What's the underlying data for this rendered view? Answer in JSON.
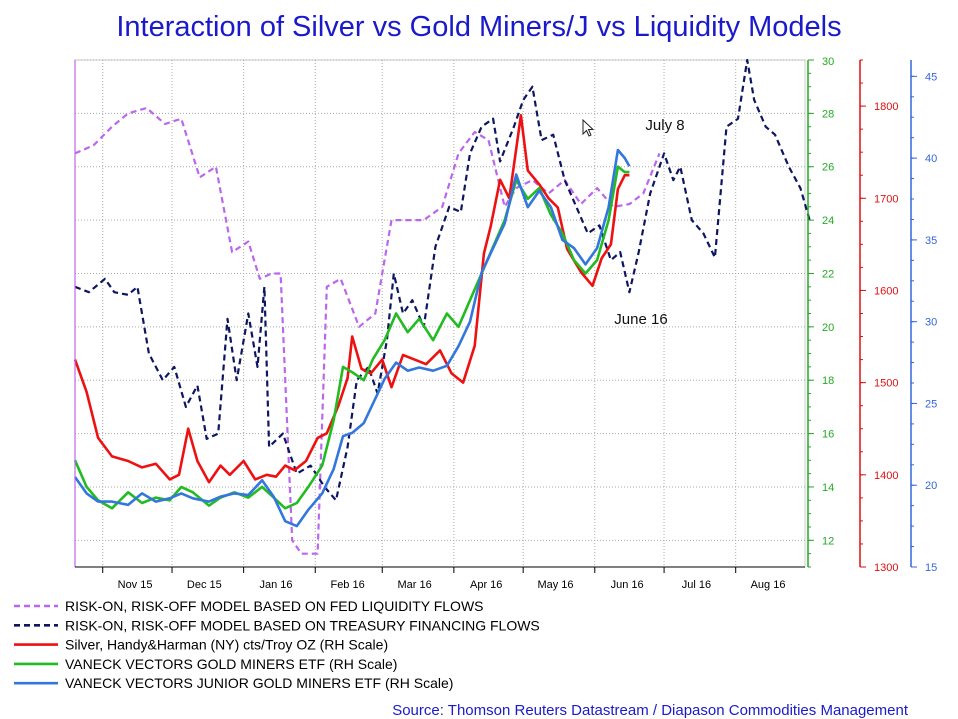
{
  "chart_data": {
    "type": "line",
    "title": "Interaction of Silver vs Gold Miners/J vs Liquidity Models",
    "source": "Source: Thomson Reuters Datastream / Diapason Commodities Management",
    "x_labels": [
      "Nov 15",
      "Dec 15",
      "Jan 16",
      "Feb 16",
      "Mar 16",
      "Apr 16",
      "May 16",
      "Jun 16",
      "Jul 16",
      "Aug 16"
    ],
    "x_range": [
      "2015-10-20",
      "2016-08-31"
    ],
    "annotations": [
      {
        "text": "July 8",
        "date": "2016-07-08"
      },
      {
        "text": "June 16",
        "date": "2016-06-16"
      }
    ],
    "axes": [
      {
        "name": "gdx-axis",
        "color": "#22aa22",
        "min": 11,
        "max": 30,
        "ticks": [
          12,
          14,
          16,
          18,
          20,
          22,
          24,
          26,
          28,
          30
        ]
      },
      {
        "name": "silver-axis",
        "color": "#dd1111",
        "min": 1300,
        "max": 1850,
        "ticks": [
          1300,
          1400,
          1500,
          1600,
          1700,
          1800
        ]
      },
      {
        "name": "gdxj-axis",
        "color": "#3366dd",
        "min": 15,
        "max": 46,
        "ticks": [
          15,
          20,
          25,
          30,
          35,
          40,
          45
        ]
      }
    ],
    "series": [
      {
        "name": "RISK-ON, RISK-OFF MODEL BASED ON FED LIQUIDITY FLOWS",
        "color": "#bb66ee",
        "dash": "6,4",
        "axis": "gdx-axis",
        "points": [
          [
            "2015-10-20",
            26.5
          ],
          [
            "2015-10-28",
            26.8
          ],
          [
            "2015-11-05",
            27.5
          ],
          [
            "2015-11-12",
            28.0
          ],
          [
            "2015-11-20",
            28.2
          ],
          [
            "2015-11-28",
            27.6
          ],
          [
            "2015-12-05",
            27.8
          ],
          [
            "2015-12-13",
            25.6
          ],
          [
            "2015-12-20",
            26.0
          ],
          [
            "2015-12-27",
            22.8
          ],
          [
            "2016-01-03",
            23.2
          ],
          [
            "2016-01-08",
            21.8
          ],
          [
            "2016-01-13",
            22.0
          ],
          [
            "2016-01-17",
            22.0
          ],
          [
            "2016-01-22",
            12.0
          ],
          [
            "2016-01-26",
            11.5
          ],
          [
            "2016-02-02",
            11.5
          ],
          [
            "2016-02-06",
            21.5
          ],
          [
            "2016-02-12",
            21.8
          ],
          [
            "2016-02-20",
            20.0
          ],
          [
            "2016-02-27",
            20.5
          ],
          [
            "2016-03-05",
            24.0
          ],
          [
            "2016-03-12",
            24.0
          ],
          [
            "2016-03-19",
            24.0
          ],
          [
            "2016-03-27",
            24.5
          ],
          [
            "2016-04-03",
            26.5
          ],
          [
            "2016-04-10",
            27.3
          ],
          [
            "2016-04-16",
            27.0
          ],
          [
            "2016-04-23",
            24.5
          ],
          [
            "2016-04-28",
            25.2
          ],
          [
            "2016-05-05",
            25.5
          ],
          [
            "2016-05-12",
            25.0
          ],
          [
            "2016-05-19",
            25.5
          ],
          [
            "2016-05-26",
            24.6
          ],
          [
            "2016-06-02",
            25.2
          ],
          [
            "2016-06-09",
            24.5
          ],
          [
            "2016-06-16",
            24.6
          ],
          [
            "2016-06-22",
            25.0
          ],
          [
            "2016-06-29",
            26.5
          ]
        ]
      },
      {
        "name": "RISK-ON, RISK-OFF MODEL BASED ON TREASURY FINANCING FLOWS",
        "color": "#0d1660",
        "dash": "6,4",
        "axis": "gdx-axis",
        "points": [
          [
            "2015-10-20",
            21.5
          ],
          [
            "2015-10-26",
            21.3
          ],
          [
            "2015-11-02",
            21.8
          ],
          [
            "2015-11-06",
            21.3
          ],
          [
            "2015-11-12",
            21.2
          ],
          [
            "2015-11-16",
            21.5
          ],
          [
            "2015-11-21",
            19.0
          ],
          [
            "2015-11-27",
            18.0
          ],
          [
            "2015-12-02",
            18.5
          ],
          [
            "2015-12-07",
            17.0
          ],
          [
            "2015-12-12",
            17.8
          ],
          [
            "2015-12-16",
            15.8
          ],
          [
            "2015-12-21",
            16.0
          ],
          [
            "2015-12-25",
            20.3
          ],
          [
            "2015-12-29",
            18.0
          ],
          [
            "2016-01-03",
            20.5
          ],
          [
            "2016-01-07",
            18.5
          ],
          [
            "2016-01-10",
            21.5
          ],
          [
            "2016-01-12",
            15.5
          ],
          [
            "2016-01-18",
            16.0
          ],
          [
            "2016-01-24",
            14.5
          ],
          [
            "2016-01-30",
            14.8
          ],
          [
            "2016-02-05",
            14.0
          ],
          [
            "2016-02-10",
            13.5
          ],
          [
            "2016-02-15",
            15.5
          ],
          [
            "2016-02-19",
            18.0
          ],
          [
            "2016-02-24",
            18.5
          ],
          [
            "2016-02-28",
            17.5
          ],
          [
            "2016-03-03",
            19.5
          ],
          [
            "2016-03-06",
            22.0
          ],
          [
            "2016-03-10",
            20.5
          ],
          [
            "2016-03-14",
            21.0
          ],
          [
            "2016-03-19",
            20.0
          ],
          [
            "2016-03-24",
            23.0
          ],
          [
            "2016-03-30",
            24.5
          ],
          [
            "2016-04-04",
            24.3
          ],
          [
            "2016-04-08",
            26.5
          ],
          [
            "2016-04-13",
            27.5
          ],
          [
            "2016-04-18",
            27.8
          ],
          [
            "2016-04-21",
            26.2
          ],
          [
            "2016-04-27",
            27.5
          ],
          [
            "2016-05-01",
            28.5
          ],
          [
            "2016-05-05",
            29.0
          ],
          [
            "2016-05-09",
            27.0
          ],
          [
            "2016-05-14",
            27.2
          ],
          [
            "2016-05-19",
            25.5
          ],
          [
            "2016-05-24",
            24.5
          ],
          [
            "2016-05-29",
            23.5
          ],
          [
            "2016-06-03",
            23.8
          ],
          [
            "2016-06-08",
            22.5
          ],
          [
            "2016-06-12",
            22.8
          ],
          [
            "2016-06-16",
            21.3
          ],
          [
            "2016-06-20",
            22.8
          ],
          [
            "2016-06-25",
            25.0
          ],
          [
            "2016-07-01",
            26.5
          ],
          [
            "2016-07-05",
            25.5
          ],
          [
            "2016-07-08",
            26.0
          ],
          [
            "2016-07-13",
            24.0
          ],
          [
            "2016-07-18",
            23.5
          ],
          [
            "2016-07-23",
            22.6
          ],
          [
            "2016-07-28",
            27.5
          ],
          [
            "2016-08-02",
            27.8
          ],
          [
            "2016-08-06",
            30.0
          ],
          [
            "2016-08-09",
            28.5
          ],
          [
            "2016-08-14",
            27.5
          ],
          [
            "2016-08-18",
            27.2
          ],
          [
            "2016-08-24",
            26.0
          ],
          [
            "2016-08-29",
            25.2
          ],
          [
            "2016-09-02",
            24.0
          ]
        ]
      },
      {
        "name": "Silver, Handy&Harman (NY) cts/Troy OZ (RH Scale)",
        "color": "#ee1111",
        "dash": "",
        "axis": "silver-axis",
        "points": [
          [
            "2015-10-20",
            1525
          ],
          [
            "2015-10-25",
            1490
          ],
          [
            "2015-10-30",
            1440
          ],
          [
            "2015-11-05",
            1420
          ],
          [
            "2015-11-12",
            1415
          ],
          [
            "2015-11-18",
            1408
          ],
          [
            "2015-11-24",
            1412
          ],
          [
            "2015-11-30",
            1395
          ],
          [
            "2015-12-04",
            1400
          ],
          [
            "2015-12-08",
            1450
          ],
          [
            "2015-12-12",
            1415
          ],
          [
            "2015-12-17",
            1392
          ],
          [
            "2015-12-22",
            1410
          ],
          [
            "2015-12-26",
            1400
          ],
          [
            "2016-01-01",
            1415
          ],
          [
            "2016-01-06",
            1395
          ],
          [
            "2016-01-11",
            1400
          ],
          [
            "2016-01-15",
            1398
          ],
          [
            "2016-01-19",
            1410
          ],
          [
            "2016-01-23",
            1405
          ],
          [
            "2016-01-28",
            1415
          ],
          [
            "2016-02-02",
            1440
          ],
          [
            "2016-02-06",
            1445
          ],
          [
            "2016-02-11",
            1475
          ],
          [
            "2016-02-15",
            1505
          ],
          [
            "2016-02-17",
            1550
          ],
          [
            "2016-02-21",
            1515
          ],
          [
            "2016-02-25",
            1510
          ],
          [
            "2016-03-01",
            1525
          ],
          [
            "2016-03-05",
            1495
          ],
          [
            "2016-03-10",
            1530
          ],
          [
            "2016-03-15",
            1525
          ],
          [
            "2016-03-20",
            1520
          ],
          [
            "2016-03-26",
            1535
          ],
          [
            "2016-03-31",
            1510
          ],
          [
            "2016-04-05",
            1500
          ],
          [
            "2016-04-10",
            1540
          ],
          [
            "2016-04-14",
            1640
          ],
          [
            "2016-04-17",
            1670
          ],
          [
            "2016-04-21",
            1720
          ],
          [
            "2016-04-25",
            1700
          ],
          [
            "2016-04-30",
            1790
          ],
          [
            "2016-05-03",
            1730
          ],
          [
            "2016-05-08",
            1715
          ],
          [
            "2016-05-12",
            1700
          ],
          [
            "2016-05-16",
            1690
          ],
          [
            "2016-05-20",
            1645
          ],
          [
            "2016-05-26",
            1620
          ],
          [
            "2016-05-31",
            1605
          ],
          [
            "2016-06-04",
            1635
          ],
          [
            "2016-06-08",
            1650
          ],
          [
            "2016-06-11",
            1710
          ],
          [
            "2016-06-14",
            1725
          ],
          [
            "2016-06-16",
            1725
          ]
        ]
      },
      {
        "name": "VANECK VECTORS GOLD MINERS ETF (RH Scale)",
        "color": "#22bb22",
        "dash": "",
        "axis": "gdx-axis",
        "points": [
          [
            "2015-10-20",
            15.0
          ],
          [
            "2015-10-25",
            14.0
          ],
          [
            "2015-10-30",
            13.5
          ],
          [
            "2015-11-05",
            13.2
          ],
          [
            "2015-11-12",
            13.8
          ],
          [
            "2015-11-18",
            13.4
          ],
          [
            "2015-11-24",
            13.6
          ],
          [
            "2015-11-30",
            13.5
          ],
          [
            "2015-12-05",
            14.0
          ],
          [
            "2015-12-10",
            13.8
          ],
          [
            "2015-12-17",
            13.3
          ],
          [
            "2015-12-22",
            13.6
          ],
          [
            "2015-12-28",
            13.8
          ],
          [
            "2016-01-03",
            13.6
          ],
          [
            "2016-01-09",
            14.0
          ],
          [
            "2016-01-14",
            13.6
          ],
          [
            "2016-01-19",
            13.2
          ],
          [
            "2016-01-24",
            13.4
          ],
          [
            "2016-01-29",
            14.0
          ],
          [
            "2016-02-04",
            14.8
          ],
          [
            "2016-02-09",
            16.5
          ],
          [
            "2016-02-13",
            18.5
          ],
          [
            "2016-02-17",
            18.3
          ],
          [
            "2016-02-22",
            18.0
          ],
          [
            "2016-02-26",
            18.8
          ],
          [
            "2016-03-02",
            19.5
          ],
          [
            "2016-03-07",
            20.5
          ],
          [
            "2016-03-12",
            19.8
          ],
          [
            "2016-03-17",
            20.3
          ],
          [
            "2016-03-23",
            19.5
          ],
          [
            "2016-03-29",
            20.5
          ],
          [
            "2016-04-03",
            20.0
          ],
          [
            "2016-04-08",
            21.0
          ],
          [
            "2016-04-13",
            22.0
          ],
          [
            "2016-04-18",
            23.0
          ],
          [
            "2016-04-23",
            24.0
          ],
          [
            "2016-04-28",
            25.5
          ],
          [
            "2016-05-03",
            24.8
          ],
          [
            "2016-05-08",
            25.2
          ],
          [
            "2016-05-13",
            24.2
          ],
          [
            "2016-05-18",
            23.5
          ],
          [
            "2016-05-23",
            22.5
          ],
          [
            "2016-05-28",
            22.0
          ],
          [
            "2016-06-02",
            22.5
          ],
          [
            "2016-06-07",
            24.0
          ],
          [
            "2016-06-11",
            26.0
          ],
          [
            "2016-06-14",
            25.8
          ],
          [
            "2016-06-16",
            25.8
          ]
        ]
      },
      {
        "name": "VANECK VECTORS JUNIOR GOLD MINERS ETF (RH Scale)",
        "color": "#3377dd",
        "dash": "",
        "axis": "gdxj-axis",
        "points": [
          [
            "2015-10-20",
            20.5
          ],
          [
            "2015-10-25",
            19.5
          ],
          [
            "2015-10-30",
            19.0
          ],
          [
            "2015-11-05",
            19.0
          ],
          [
            "2015-11-12",
            18.8
          ],
          [
            "2015-11-18",
            19.5
          ],
          [
            "2015-11-24",
            19.0
          ],
          [
            "2015-11-30",
            19.2
          ],
          [
            "2015-12-05",
            19.5
          ],
          [
            "2015-12-10",
            19.2
          ],
          [
            "2015-12-17",
            19.0
          ],
          [
            "2015-12-22",
            19.3
          ],
          [
            "2015-12-28",
            19.5
          ],
          [
            "2016-01-03",
            19.4
          ],
          [
            "2016-01-09",
            20.3
          ],
          [
            "2016-01-14",
            19.3
          ],
          [
            "2016-01-19",
            17.8
          ],
          [
            "2016-01-24",
            17.5
          ],
          [
            "2016-01-29",
            18.5
          ],
          [
            "2016-02-04",
            19.5
          ],
          [
            "2016-02-09",
            21.0
          ],
          [
            "2016-02-13",
            23.0
          ],
          [
            "2016-02-17",
            23.2
          ],
          [
            "2016-02-22",
            23.8
          ],
          [
            "2016-02-26",
            25.0
          ],
          [
            "2016-03-02",
            26.5
          ],
          [
            "2016-03-07",
            27.5
          ],
          [
            "2016-03-12",
            27.0
          ],
          [
            "2016-03-17",
            27.2
          ],
          [
            "2016-03-23",
            27.0
          ],
          [
            "2016-03-29",
            27.3
          ],
          [
            "2016-04-03",
            28.5
          ],
          [
            "2016-04-08",
            30.0
          ],
          [
            "2016-04-13",
            33.0
          ],
          [
            "2016-04-18",
            34.5
          ],
          [
            "2016-04-23",
            36.0
          ],
          [
            "2016-04-28",
            39.0
          ],
          [
            "2016-05-03",
            37.0
          ],
          [
            "2016-05-08",
            38.0
          ],
          [
            "2016-05-13",
            37.0
          ],
          [
            "2016-05-18",
            35.0
          ],
          [
            "2016-05-23",
            34.5
          ],
          [
            "2016-05-28",
            33.5
          ],
          [
            "2016-06-02",
            34.5
          ],
          [
            "2016-06-07",
            37.0
          ],
          [
            "2016-06-11",
            40.5
          ],
          [
            "2016-06-14",
            40.0
          ],
          [
            "2016-06-16",
            39.5
          ]
        ]
      }
    ],
    "grid": true,
    "legend_position": "bottom-left"
  }
}
